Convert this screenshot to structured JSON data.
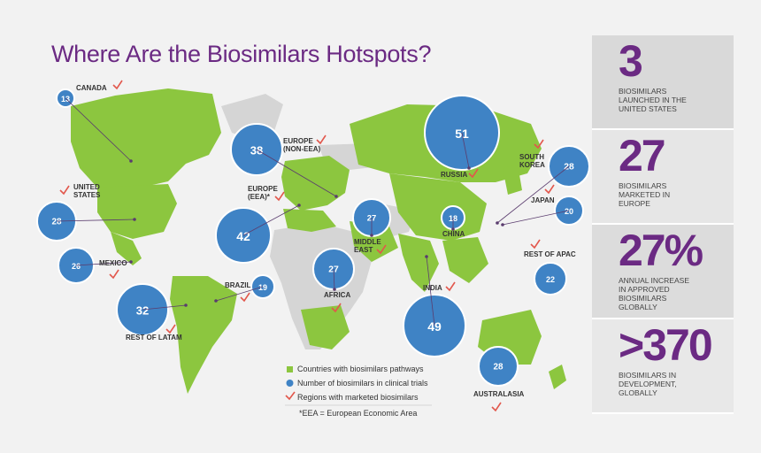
{
  "title": "Where Are the Biosimilars Hotspots?",
  "colors": {
    "pathway_green": "#8cc63f",
    "bubble_blue": "#3f83c5",
    "check_red": "#e2574c",
    "accent_purple": "#6b2a83",
    "land_grey": "#d5d5d5"
  },
  "regions": [
    {
      "id": "canada",
      "label": "CANADA",
      "value": "13",
      "marketed": true
    },
    {
      "id": "united-states",
      "label": "UNITED\nSTATES",
      "value": "28",
      "marketed": true
    },
    {
      "id": "mexico",
      "label": "MEXICO",
      "value": "26",
      "marketed": true
    },
    {
      "id": "brazil",
      "label": "BRAZIL",
      "value": "19",
      "marketed": true
    },
    {
      "id": "rest-of-latam",
      "label": "REST OF LATAM",
      "value": "32",
      "marketed": true
    },
    {
      "id": "europe-eea",
      "label": "EUROPE\n(EEA)*",
      "value": "42",
      "marketed": true
    },
    {
      "id": "europe-non-eea",
      "label": "EUROPE\n(NON-EEA)",
      "value": "38",
      "marketed": true
    },
    {
      "id": "middle-east",
      "label": "MIDDLE\nEAST",
      "value": "27",
      "marketed": true
    },
    {
      "id": "africa",
      "label": "AFRICA",
      "value": "27",
      "marketed": true
    },
    {
      "id": "russia",
      "label": "RUSSIA",
      "value": "51",
      "marketed": true
    },
    {
      "id": "china",
      "label": "CHINA",
      "value": "18",
      "marketed": false
    },
    {
      "id": "india",
      "label": "INDIA",
      "value": "49",
      "marketed": true
    },
    {
      "id": "south-korea",
      "label": "SOUTH\nKOREA",
      "value": "28",
      "marketed": true
    },
    {
      "id": "japan",
      "label": "JAPAN",
      "value": "20",
      "marketed": true
    },
    {
      "id": "rest-of-apac",
      "label": "REST OF APAC",
      "value": "22",
      "marketed": true
    },
    {
      "id": "australasia",
      "label": "AUSTRALASIA",
      "value": "28",
      "marketed": true
    }
  ],
  "legend": {
    "pathways": "Countries with biosimilars pathways",
    "clinical": "Number of biosimilars in clinical trials",
    "marketed": "Regions with marketed biosimilars",
    "footnote": "*EEA = European Economic Area"
  },
  "stats": [
    {
      "value": "3",
      "desc": "BIOSIMILARS LAUNCHED IN THE UNITED STATES"
    },
    {
      "value": "27",
      "desc": "BIOSIMILARS MARKETED IN EUROPE"
    },
    {
      "value": "27%",
      "desc": "ANNUAL INCREASE IN APPROVED BIOSIMILARS GLOBALLY"
    },
    {
      "value": ">370",
      "desc": "BIOSIMILARS IN DEVELOPMENT, GLOBALLY"
    }
  ]
}
